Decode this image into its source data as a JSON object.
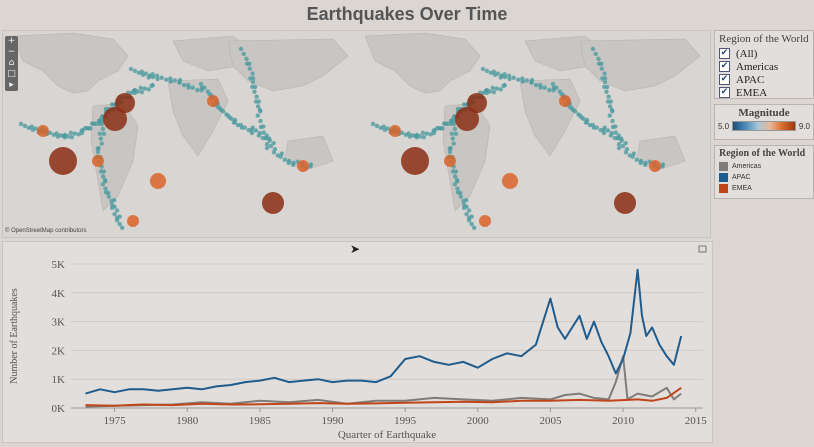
{
  "title": "Earthquakes Over Time",
  "map": {
    "attribution": "© OpenStreetMap contributors"
  },
  "filter": {
    "title": "Region of the World",
    "items": [
      {
        "label": "(All)",
        "checked": true
      },
      {
        "label": "Americas",
        "checked": true
      },
      {
        "label": "APAC",
        "checked": true
      },
      {
        "label": "EMEA",
        "checked": true
      }
    ]
  },
  "magnitude": {
    "title": "Magnitude",
    "min_label": "5.0",
    "max_label": "9.0"
  },
  "color_legend": {
    "title": "Region of the World",
    "items": [
      {
        "label": "Americas",
        "color": "#7f7c7a"
      },
      {
        "label": "APAC",
        "color": "#1f5c8e"
      },
      {
        "label": "EMEA",
        "color": "#c0451a"
      }
    ]
  },
  "colors": {
    "ocean_dots": "#4f9ba0",
    "quake_large": "#8b2e14",
    "quake_mid": "#d9632a",
    "land": "#c9c5c2"
  },
  "chart_data": {
    "type": "line",
    "xlabel": "Quarter of Earthquake",
    "ylabel": "Number of Earthquakes",
    "xlim": [
      1972,
      2015.5
    ],
    "ylim": [
      0,
      5000
    ],
    "x_ticks": [
      "1975",
      "1980",
      "1985",
      "1990",
      "1995",
      "2000",
      "2005",
      "2010",
      "2015"
    ],
    "y_ticks": [
      "0K",
      "1K",
      "2K",
      "3K",
      "4K",
      "5K"
    ],
    "series": [
      {
        "name": "APAC",
        "color": "#1f5c8e",
        "points": [
          [
            1973,
            500
          ],
          [
            1974,
            650
          ],
          [
            1975,
            550
          ],
          [
            1976,
            650
          ],
          [
            1977,
            650
          ],
          [
            1978,
            600
          ],
          [
            1979,
            650
          ],
          [
            1980,
            700
          ],
          [
            1981,
            650
          ],
          [
            1982,
            750
          ],
          [
            1983,
            800
          ],
          [
            1984,
            900
          ],
          [
            1985,
            950
          ],
          [
            1986,
            1050
          ],
          [
            1987,
            900
          ],
          [
            1988,
            950
          ],
          [
            1989,
            1000
          ],
          [
            1990,
            900
          ],
          [
            1991,
            950
          ],
          [
            1992,
            950
          ],
          [
            1993,
            900
          ],
          [
            1994,
            1100
          ],
          [
            1995,
            1700
          ],
          [
            1996,
            1800
          ],
          [
            1997,
            1600
          ],
          [
            1998,
            1500
          ],
          [
            1999,
            1600
          ],
          [
            2000,
            1400
          ],
          [
            2001,
            1700
          ],
          [
            2002,
            1900
          ],
          [
            2003,
            1800
          ],
          [
            2004,
            2200
          ],
          [
            2005,
            3800
          ],
          [
            2005.5,
            2800
          ],
          [
            2006,
            2400
          ],
          [
            2006.5,
            2800
          ],
          [
            2007,
            3200
          ],
          [
            2007.5,
            2400
          ],
          [
            2008,
            3000
          ],
          [
            2008.5,
            2300
          ],
          [
            2009,
            1800
          ],
          [
            2009.5,
            1200
          ],
          [
            2010,
            1700
          ],
          [
            2010.5,
            2600
          ],
          [
            2011,
            4800
          ],
          [
            2011.3,
            3200
          ],
          [
            2011.6,
            2500
          ],
          [
            2012,
            2800
          ],
          [
            2012.5,
            2200
          ],
          [
            2013,
            1800
          ],
          [
            2013.5,
            1500
          ],
          [
            2014,
            2500
          ]
        ]
      },
      {
        "name": "Americas",
        "color": "#7f7c7a",
        "points": [
          [
            1973,
            50
          ],
          [
            1975,
            80
          ],
          [
            1977,
            100
          ],
          [
            1979,
            120
          ],
          [
            1981,
            200
          ],
          [
            1983,
            150
          ],
          [
            1985,
            250
          ],
          [
            1987,
            200
          ],
          [
            1989,
            280
          ],
          [
            1991,
            150
          ],
          [
            1993,
            250
          ],
          [
            1995,
            250
          ],
          [
            1997,
            350
          ],
          [
            1999,
            300
          ],
          [
            2001,
            250
          ],
          [
            2003,
            350
          ],
          [
            2005,
            300
          ],
          [
            2006,
            450
          ],
          [
            2007,
            500
          ],
          [
            2008,
            350
          ],
          [
            2009,
            300
          ],
          [
            2009.5,
            900
          ],
          [
            2010,
            1800
          ],
          [
            2010.3,
            300
          ],
          [
            2011,
            500
          ],
          [
            2012,
            400
          ],
          [
            2013,
            700
          ],
          [
            2013.5,
            300
          ],
          [
            2014,
            500
          ]
        ]
      },
      {
        "name": "EMEA",
        "color": "#c0451a",
        "points": [
          [
            1973,
            100
          ],
          [
            1975,
            80
          ],
          [
            1977,
            120
          ],
          [
            1979,
            100
          ],
          [
            1981,
            150
          ],
          [
            1983,
            120
          ],
          [
            1985,
            130
          ],
          [
            1987,
            150
          ],
          [
            1989,
            170
          ],
          [
            1991,
            150
          ],
          [
            1993,
            160
          ],
          [
            1995,
            180
          ],
          [
            1997,
            200
          ],
          [
            1999,
            220
          ],
          [
            2001,
            200
          ],
          [
            2003,
            250
          ],
          [
            2005,
            250
          ],
          [
            2007,
            280
          ],
          [
            2009,
            250
          ],
          [
            2011,
            300
          ],
          [
            2012,
            250
          ],
          [
            2013,
            350
          ],
          [
            2014,
            700
          ]
        ]
      }
    ]
  }
}
